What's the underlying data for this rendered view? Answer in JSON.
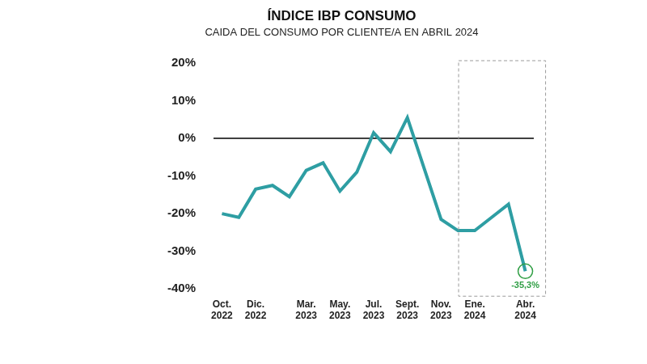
{
  "chart_data": {
    "type": "line",
    "title": "ÍNDICE IBP CONSUMO",
    "subtitle": "CAIDA DEL CONSUMO POR CLIENTE/A EN ABRIL 2024",
    "categories": [
      "Oct. 2022",
      null,
      "Dic. 2022",
      null,
      null,
      "Mar. 2023",
      null,
      "May. 2023",
      null,
      "Jul. 2023",
      null,
      "Sept. 2023",
      null,
      "Nov. 2023",
      null,
      "Ene. 2024",
      null,
      null,
      "Abr. 2024"
    ],
    "values": [
      -20,
      -21,
      -13.5,
      -12.5,
      -15.5,
      -8.5,
      -6.5,
      -14,
      -9,
      1.5,
      -3.5,
      5.5,
      -8,
      -21.5,
      -24.5,
      -24.5,
      -21,
      -17.5,
      -35.3
    ],
    "value_labels": [
      null,
      null,
      null,
      null,
      null,
      null,
      null,
      null,
      null,
      null,
      null,
      null,
      null,
      null,
      null,
      null,
      null,
      null,
      "-35,3%"
    ],
    "data_labels": true,
    "color": "#2e9ea3",
    "ylim": [
      -40,
      20
    ],
    "yticks": [
      {
        "value": -40,
        "label": "-40%"
      },
      {
        "value": -30,
        "label": "-30%"
      },
      {
        "value": -20,
        "label": "-20%"
      },
      {
        "value": -10,
        "label": "-10%"
      },
      {
        "value": 0,
        "label": "0%"
      },
      {
        "value": 10,
        "label": "10%"
      },
      {
        "value": 20,
        "label": "20%"
      }
    ],
    "grid": false
  }
}
